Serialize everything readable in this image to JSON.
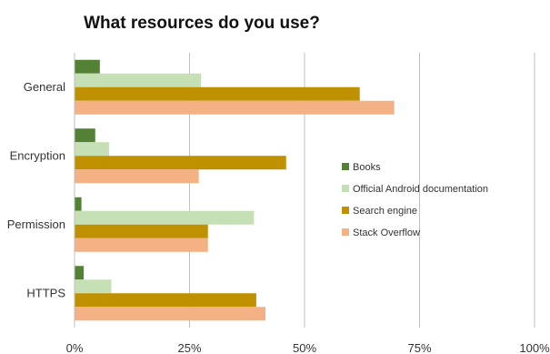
{
  "chart_data": {
    "type": "bar",
    "orientation": "horizontal",
    "title": "What resources do you use?",
    "categories": [
      "General",
      "Encryption",
      "Permission",
      "HTTPS"
    ],
    "series": [
      {
        "name": "Books",
        "color": "#548235",
        "values": [
          5.5,
          4.5,
          1.5,
          2
        ]
      },
      {
        "name": "Official Android documentation",
        "color": "#c5e0b4",
        "values": [
          27.5,
          7.5,
          39,
          8
        ]
      },
      {
        "name": "Search engine",
        "color": "#bf9000",
        "values": [
          62,
          46,
          29,
          39.5
        ]
      },
      {
        "name": "Stack Overflow",
        "color": "#f4b183",
        "values": [
          69.5,
          27,
          29,
          41.5
        ]
      }
    ],
    "xlim": [
      0,
      100
    ],
    "ticks": [
      0,
      25,
      50,
      75,
      100
    ],
    "tick_labels": [
      "0%",
      "25%",
      "50%",
      "75%",
      "100%"
    ],
    "grid": true,
    "legend_position": "right"
  }
}
